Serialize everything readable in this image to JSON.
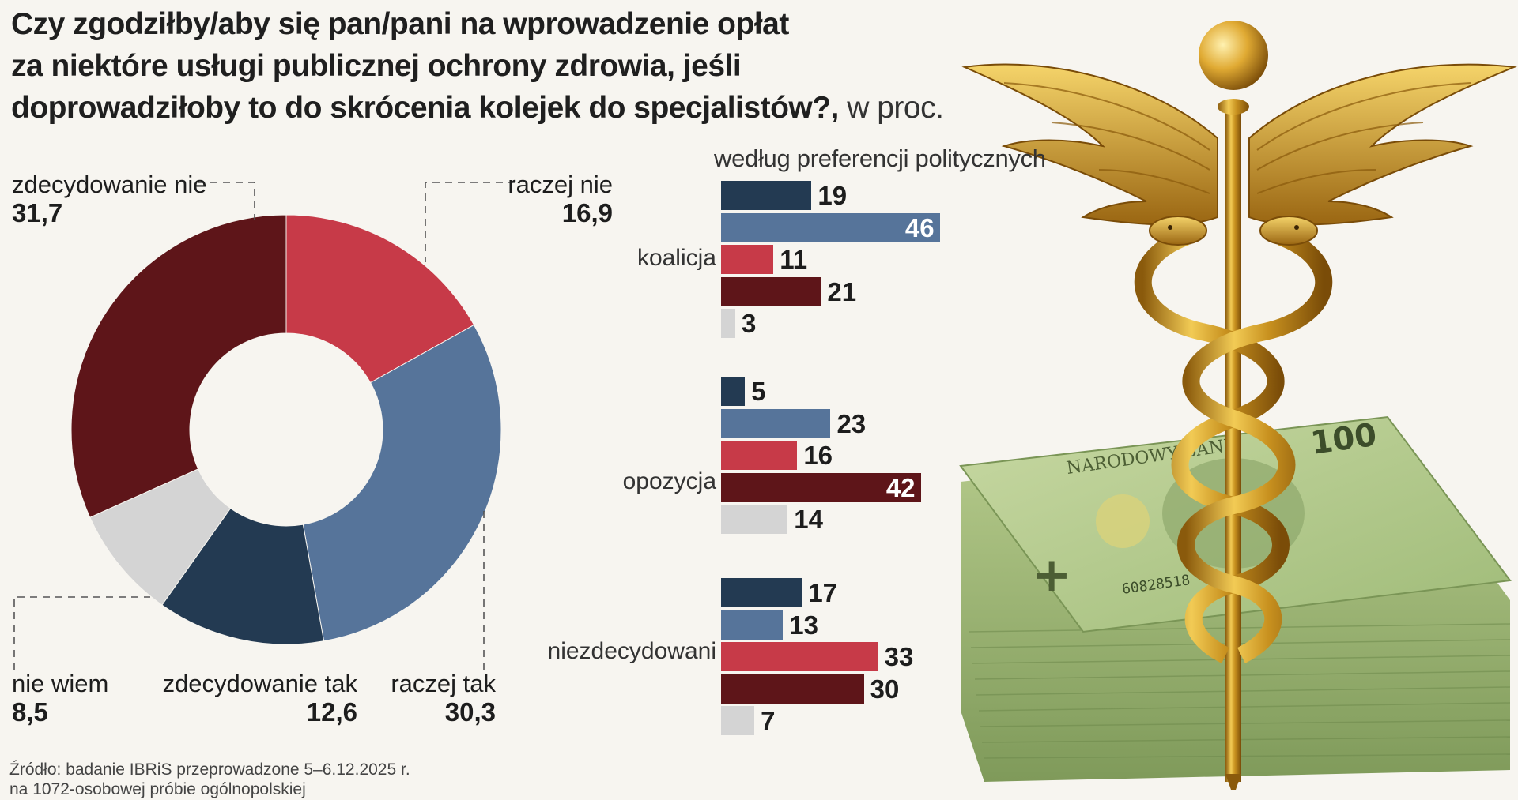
{
  "title": {
    "line1": "Czy zgodziłby/aby się pan/pani na wprowadzenie opłat",
    "line2": "za niektóre usługi publicznej ochrony zdrowia, jeśli",
    "line3": "doprowadziłoby to do skrócenia kolejek do specjalistów?,",
    "unit": " w proc."
  },
  "source": {
    "line1": "Źródło: badanie IBRiS przeprowadzone  5–6.12.2025 r.",
    "line2": "na 1072-osobowej próbie ogólnopolskiej"
  },
  "colors": {
    "zdecydowanie_tak": "#233a52",
    "raczej_tak": "#56749a",
    "raczej_nie": "#c73a48",
    "zdecydowanie_nie": "#5e1519",
    "nie_wiem": "#d4d4d4"
  },
  "chart_data": [
    {
      "type": "pie",
      "title": "Czy zgodziłby/aby się pan/pani na wprowadzenie opłat za niektóre usługi publicznej ochrony zdrowia, jeśli doprowadziłoby to do skrócenia kolejek do specjalistów?, w proc.",
      "slices": [
        {
          "label": "raczej nie",
          "value": 16.9,
          "display": "16,9",
          "color": "#c73a48"
        },
        {
          "label": "raczej tak",
          "value": 30.3,
          "display": "30,3",
          "color": "#56749a"
        },
        {
          "label": "zdecydowanie tak",
          "value": 12.6,
          "display": "12,6",
          "color": "#233a52"
        },
        {
          "label": "nie wiem",
          "value": 8.5,
          "display": "8,5",
          "color": "#d4d4d4"
        },
        {
          "label": "zdecydowanie nie",
          "value": 31.7,
          "display": "31,7",
          "color": "#5e1519"
        }
      ]
    },
    {
      "type": "bar",
      "orientation": "horizontal",
      "title": "według preferencji politycznych",
      "series_order": [
        "zdecydowanie tak",
        "raczej tak",
        "raczej nie",
        "zdecydowanie nie",
        "nie wiem"
      ],
      "series_colors": [
        "#233a52",
        "#56749a",
        "#c73a48",
        "#5e1519",
        "#d4d4d4"
      ],
      "groups": [
        {
          "name": "koalicja",
          "values": [
            19,
            46,
            11,
            21,
            3
          ]
        },
        {
          "name": "opozycja",
          "values": [
            5,
            23,
            16,
            42,
            14
          ]
        },
        {
          "name": "niezdecydowani",
          "values": [
            17,
            13,
            33,
            30,
            7
          ]
        }
      ]
    }
  ],
  "labels": {
    "zdecydowanie_nie": {
      "name": "zdecydowanie nie",
      "value": "31,7"
    },
    "raczej_nie": {
      "name": "raczej nie",
      "value": "16,9"
    },
    "nie_wiem": {
      "name": "nie wiem",
      "value": "8,5"
    },
    "zdecydowanie_tak": {
      "name": "zdecydowanie tak",
      "value": "12,6"
    },
    "raczej_tak": {
      "name": "raczej tak",
      "value": "30,3"
    }
  },
  "bars_subtitle": "według preferencji politycznych",
  "groups": {
    "koalicja": "koalicja",
    "opozycja": "opozycja",
    "niezdecydowani": "niezdecydowani"
  },
  "illustration": {
    "banknote_text": "NARODOWY BANK",
    "banknote_value": "100",
    "banknote_serial": "60828518"
  }
}
